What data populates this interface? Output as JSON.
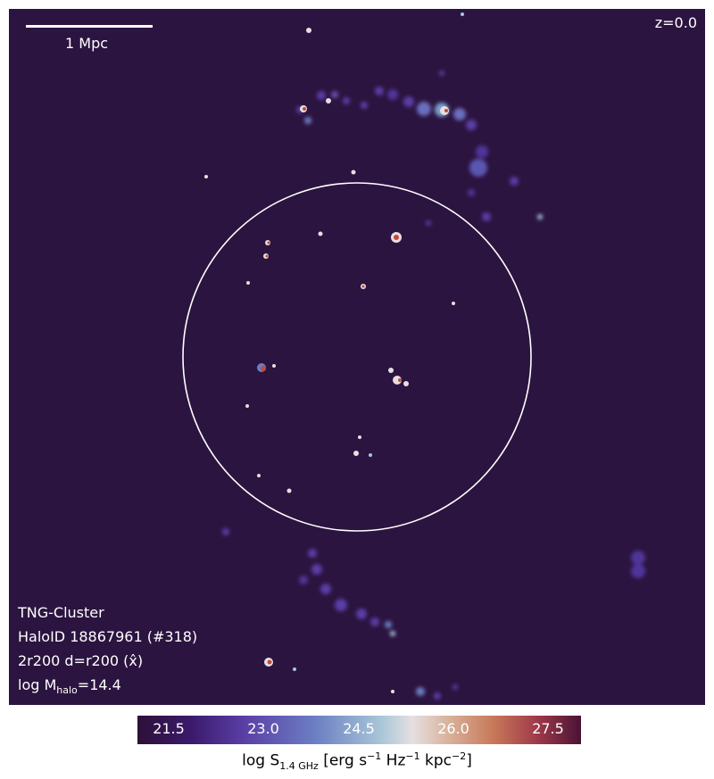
{
  "scalebar": {
    "label": "1 Mpc"
  },
  "redshift": "z=0.0",
  "info": {
    "sim": "TNG-Cluster",
    "halo": "HaloID 18867961 (#318)",
    "extent": "2r200 d=r200 (x̂)",
    "mass_prefix": "log M",
    "mass_sub": "halo",
    "mass_value": "=14.4"
  },
  "colorbar": {
    "ticks": [
      "21.5",
      "23.0",
      "24.5",
      "26.0",
      "27.5"
    ],
    "label_prefix": "log S",
    "label_sub": "1.4 GHz",
    "label_units": "[erg s",
    "exp1": "−1",
    "hz": " Hz",
    "exp2": "−1",
    "kpc": " kpc",
    "exp3": "−2",
    "close": "]"
  },
  "colors": {
    "background": "#2c1440",
    "circle": "#ffffff",
    "low": "#5a3ea6",
    "mid": "#e6dfe2",
    "high": "#c24a3a"
  }
}
